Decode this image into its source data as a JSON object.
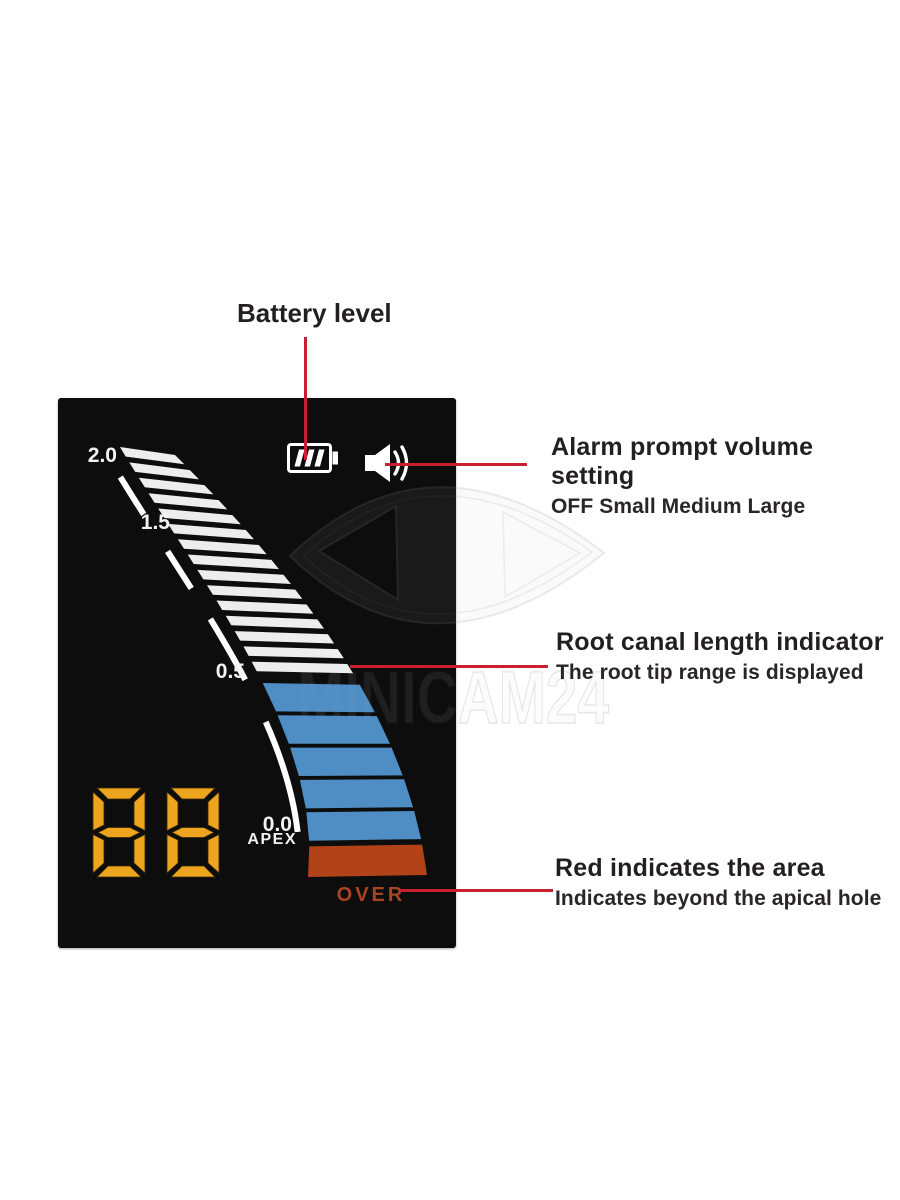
{
  "annotations": {
    "battery_label": "Battery level",
    "alarm": {
      "title": "Alarm prompt volume setting",
      "subtitle": "OFF Small Medium Large"
    },
    "root_canal": {
      "title": "Root canal length indicator",
      "subtitle": "The root tip range is displayed"
    },
    "red_area": {
      "title": "Red indicates the area",
      "subtitle": "Indicates beyond the apical hole"
    }
  },
  "display": {
    "scale": {
      "l20": "2.0",
      "l15": "1.5",
      "l05": "0.5",
      "l00": "0.0",
      "apex": "APEX"
    },
    "over_label": "OVER",
    "digits": "88",
    "bars": {
      "white_count": 15,
      "blue_count": 5,
      "red_count": 1
    },
    "colors": {
      "screen_bg": "#0d0d0d",
      "bar_white": "#ffffff",
      "bar_blue": "#5598d2",
      "bar_red": "#bf4719",
      "over_text": "#a84323",
      "digit_amber": "#eda41e",
      "scale_text": "#f2f2f2",
      "pointer_red": "#c9202f"
    }
  },
  "watermark": {
    "text": "MINICAM24"
  }
}
